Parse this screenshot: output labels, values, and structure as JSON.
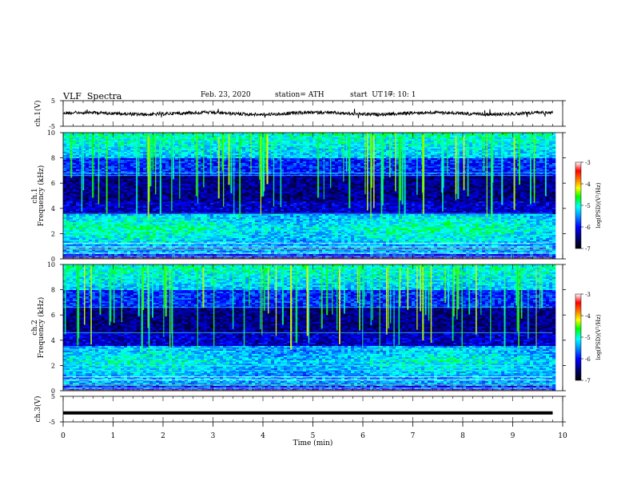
{
  "header": {
    "title": "VLF  Spectra",
    "date": "Feb. 23, 2020",
    "station": "station= ATH",
    "start_label": "start  UT  =",
    "start_value": "17: 10: 1"
  },
  "chart_data": [
    {
      "type": "line",
      "panel": "ch1-waveform",
      "ylabel": "ch.1(V)",
      "ylim": [
        -5,
        5
      ],
      "ytick_labels": [
        "5",
        "-5"
      ],
      "xlim": [
        0,
        10
      ],
      "series": [
        {
          "x": [
            0,
            9.8
          ],
          "y": [
            0,
            0
          ]
        }
      ]
    },
    {
      "type": "heatmap",
      "panel": "ch1-spectrogram",
      "ylabel": "ch.1\nFrequency  (kHz)",
      "ylim": [
        0,
        10
      ],
      "ytick_labels": [
        "0",
        "2",
        "4",
        "6",
        "8",
        "10"
      ],
      "xlim": [
        0,
        10
      ],
      "data_end_min": 9.8,
      "colorbar": {
        "label": "log(PSD)(V²/Hz)",
        "range": [
          -7,
          -3
        ],
        "tick_labels": [
          "-3",
          "-4",
          "-5",
          "-6",
          "-7"
        ]
      }
    },
    {
      "type": "heatmap",
      "panel": "ch2-spectrogram",
      "ylabel": "ch.2\nFrequency  (kHz)",
      "ylim": [
        0,
        10
      ],
      "ytick_labels": [
        "0",
        "2",
        "4",
        "6",
        "8",
        "10"
      ],
      "xlim": [
        0,
        10
      ],
      "data_end_min": 9.8,
      "colorbar": {
        "label": "log(PSD)(V²/Hz)",
        "range": [
          -7,
          -3
        ],
        "tick_labels": [
          "-3",
          "-4",
          "-5",
          "-6",
          "-7"
        ]
      }
    },
    {
      "type": "line",
      "panel": "ch3-waveform",
      "ylabel": "ch.3(V)",
      "ylim": [
        -5,
        5
      ],
      "ytick_labels": [
        "5",
        "-5"
      ],
      "xlabel": "Time  (min)",
      "xlim": [
        0,
        10
      ],
      "xtick_labels": [
        "0",
        "1",
        "2",
        "3",
        "4",
        "5",
        "6",
        "7",
        "8",
        "9",
        "10"
      ],
      "series": [
        {
          "x": [
            0,
            9.8
          ],
          "y": [
            -1.5,
            -1.5
          ]
        }
      ]
    }
  ]
}
